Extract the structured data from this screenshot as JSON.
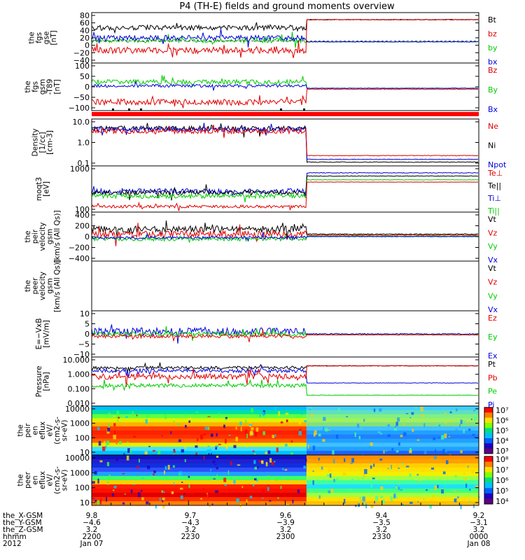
{
  "title": "P4 (TH-E) fields and ground moments overview",
  "colors": {
    "black": "#000000",
    "red": "#e00000",
    "green": "#00cc00",
    "blue": "#0000dd"
  },
  "chart_data": [
    {
      "id": "fgs",
      "type": "line",
      "ylabel": [
        "the",
        "fgs",
        "gse",
        "[nT]"
      ],
      "ticks": [
        "80",
        "60",
        "40",
        "20",
        "0",
        "−20",
        "−40"
      ],
      "legend": [
        {
          "label": "Bt",
          "color": "black"
        },
        {
          "label": "bz",
          "color": "red"
        },
        {
          "label": "by",
          "color": "green"
        },
        {
          "label": "bx",
          "color": "blue"
        }
      ]
    },
    {
      "id": "fgs_gsm",
      "type": "line",
      "ylabel": [
        "the",
        "fgs",
        "gsm",
        "-T89",
        "[nT]"
      ],
      "ticks": [
        "100",
        "50",
        "0",
        "−50",
        "−100"
      ],
      "legend": [
        {
          "label": "Bz",
          "color": "red"
        },
        {
          "label": "By",
          "color": "green"
        },
        {
          "label": "Bx",
          "color": "blue"
        }
      ]
    },
    {
      "id": "density",
      "type": "line",
      "ylabel": [
        "Density",
        "[1/cc]",
        "[cm-3]"
      ],
      "ticks": [
        "10.0",
        "1.0",
        "0.1"
      ],
      "legend": [
        {
          "label": "Ne",
          "color": "red"
        },
        {
          "label": "Ni",
          "color": "black"
        },
        {
          "label": "Npot",
          "color": "blue"
        }
      ]
    },
    {
      "id": "temp",
      "type": "line",
      "ylabel": [
        "moqt3",
        "[eV]"
      ],
      "ticks": [
        "1000",
        "100"
      ],
      "legend": [
        {
          "label": "Te⊥",
          "color": "red"
        },
        {
          "label": "Te||",
          "color": "black"
        },
        {
          "label": "Ti⊥",
          "color": "blue"
        },
        {
          "label": "Ti||",
          "color": "green"
        }
      ]
    },
    {
      "id": "vel_i",
      "type": "line",
      "ylabel": [
        "the",
        "peir",
        "velocity",
        "gsm",
        "[km/s (All Qs)]"
      ],
      "ticks": [
        "400",
        "200",
        "0",
        "−200",
        "−400"
      ],
      "legend": [
        {
          "label": "Vt",
          "color": "black"
        },
        {
          "label": "Vz",
          "color": "red"
        },
        {
          "label": "Vy",
          "color": "green"
        },
        {
          "label": "Vx",
          "color": "blue"
        }
      ]
    },
    {
      "id": "vel_e",
      "type": "line",
      "ylabel": [
        "the",
        "peer",
        "velocity",
        "gsm",
        "[km/s (All Qs)]"
      ],
      "ticks": [],
      "legend": [
        {
          "label": "Vt",
          "color": "black"
        },
        {
          "label": "Vz",
          "color": "red"
        },
        {
          "label": "Vy",
          "color": "green"
        },
        {
          "label": "Vx",
          "color": "blue"
        }
      ]
    },
    {
      "id": "efield",
      "type": "line",
      "ylabel": [
        "E=−VxB",
        "[mV/m]"
      ],
      "ticks": [
        "10",
        "5",
        "0",
        "−5",
        "−10"
      ],
      "legend": [
        {
          "label": "Ez",
          "color": "red"
        },
        {
          "label": "Ey",
          "color": "green"
        },
        {
          "label": "Ex",
          "color": "blue"
        }
      ]
    },
    {
      "id": "pressure",
      "type": "line",
      "ylabel": [
        "Pressure",
        "[nPa]"
      ],
      "ticks": [
        "10.000",
        "1.000",
        "0.100",
        "0.010"
      ],
      "legend": [
        {
          "label": "Pt",
          "color": "black"
        },
        {
          "label": "Pb",
          "color": "red"
        },
        {
          "label": "Pe",
          "color": "green"
        },
        {
          "label": "Pi",
          "color": "blue"
        }
      ]
    },
    {
      "id": "ion_spec",
      "type": "heatmap",
      "ylabel": [
        "the",
        "peir",
        "en",
        "eflux",
        "eV/",
        "(cm2-s-",
        "sr-eV)"
      ],
      "ticks": [
        "10000",
        "1000",
        "100",
        "10"
      ],
      "colorbar": [
        "10⁷",
        "10⁶",
        "10⁵",
        "10⁴",
        "10³"
      ]
    },
    {
      "id": "ele_spec",
      "type": "heatmap",
      "ylabel": [
        "the",
        "peer",
        "en",
        "eflux",
        "eV/",
        "(cm2-s-",
        "sr-eV)"
      ],
      "ticks": [
        "10000",
        "1000",
        "100",
        "10"
      ],
      "colorbar": [
        "10⁸",
        "10⁷",
        "10⁶",
        "10⁵",
        "10⁴"
      ]
    }
  ],
  "xaxis": {
    "row_labels": [
      "the_X-GSM",
      "the_Y-GSM",
      "the_Z-GSM",
      "hhmm",
      "2012"
    ],
    "columns": [
      [
        "9.8",
        "−4.6",
        "3.2",
        "2200",
        "Jan 07"
      ],
      [
        "9.7",
        "−4.3",
        "3.2",
        "2230",
        ""
      ],
      [
        "9.6",
        "−3.9",
        "3.2",
        "2300",
        ""
      ],
      [
        "9.4",
        "−3.5",
        "3.2",
        "2330",
        ""
      ],
      [
        "9.2",
        "−3.1",
        "3.2",
        "0000",
        "Jan 08"
      ]
    ]
  }
}
